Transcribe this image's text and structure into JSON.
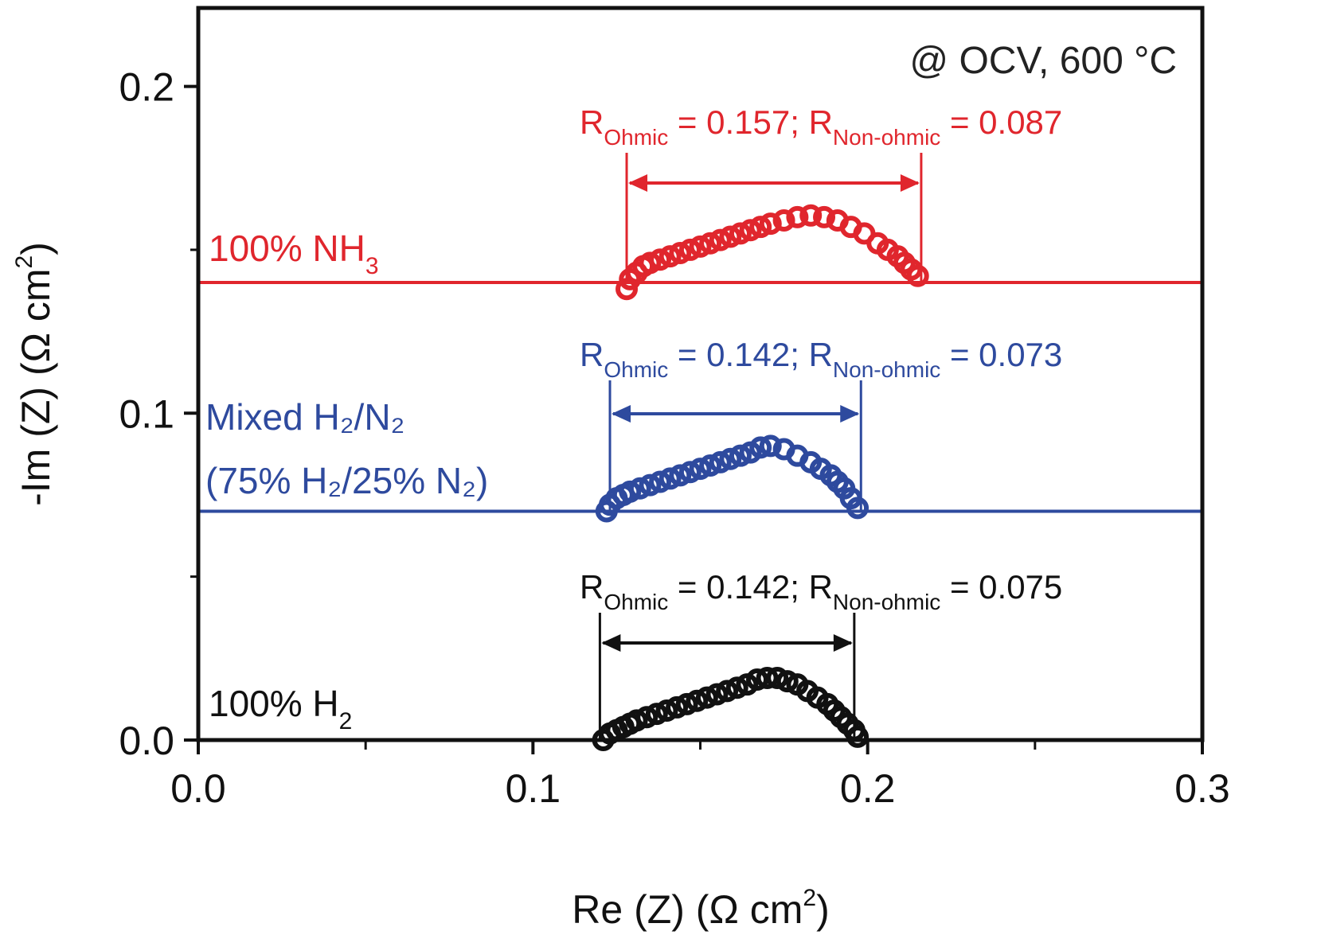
{
  "chart_data": {
    "type": "scatter",
    "title": "",
    "condition_label": "@ OCV, 600 °C",
    "xlabel": "Re (Z) (Ω cm²)",
    "ylabel": "-Im (Z) (Ω cm²)",
    "xlim": [
      0.0,
      0.3
    ],
    "ylim": [
      0.0,
      0.224
    ],
    "x_ticks": [
      0.0,
      0.1,
      0.2,
      0.3
    ],
    "x_tick_labels": [
      "0.0",
      "0.1",
      "0.2",
      "0.3"
    ],
    "x_minor_ticks": [
      0.05,
      0.15,
      0.25
    ],
    "y_ticks": [
      0.0,
      0.1,
      0.2
    ],
    "y_tick_labels": [
      "0.0",
      "0.1",
      "0.2"
    ],
    "y_minor_ticks": [
      0.05,
      0.15
    ],
    "grid": false,
    "series": [
      {
        "name": "100% NH3",
        "label_main": "100% NH",
        "label_sub": "3",
        "color": "#e0262d",
        "baseline_offset": 0.14,
        "r_ohmic": 0.157,
        "r_non_ohmic": 0.087,
        "annotation": {
          "r_ohmic_label": "R",
          "r_ohmic_sub": "Ohmic",
          "r_ohmic_text": " = 0.157; ",
          "r_non_sub": "Non-ohmic",
          "r_non_text": " = 0.087"
        },
        "arrow_range": [
          0.128,
          0.216
        ],
        "x": [
          0.128,
          0.129,
          0.131,
          0.133,
          0.135,
          0.138,
          0.141,
          0.144,
          0.147,
          0.15,
          0.153,
          0.156,
          0.159,
          0.162,
          0.165,
          0.168,
          0.171,
          0.175,
          0.179,
          0.183,
          0.187,
          0.191,
          0.195,
          0.199,
          0.203,
          0.206,
          0.209,
          0.211,
          0.213,
          0.215
        ],
        "y": [
          0.138,
          0.141,
          0.143,
          0.145,
          0.146,
          0.147,
          0.148,
          0.149,
          0.15,
          0.151,
          0.152,
          0.153,
          0.154,
          0.155,
          0.156,
          0.157,
          0.158,
          0.159,
          0.16,
          0.1605,
          0.16,
          0.159,
          0.157,
          0.155,
          0.152,
          0.15,
          0.148,
          0.146,
          0.144,
          0.142
        ]
      },
      {
        "name": "Mixed H2/N2 (75% H2/25% N2)",
        "label_line1": "Mixed H₂/N₂",
        "label_line2": "(75% H₂/25% N₂)",
        "color": "#2e4a9e",
        "baseline_offset": 0.07,
        "r_ohmic": 0.142,
        "r_non_ohmic": 0.073,
        "annotation": {
          "r_ohmic_label": "R",
          "r_ohmic_sub": "Ohmic",
          "r_ohmic_text": " = 0.142; ",
          "r_non_sub": "Non-ohmic",
          "r_non_text": " = 0.073"
        },
        "arrow_range": [
          0.123,
          0.198
        ],
        "x": [
          0.122,
          0.123,
          0.125,
          0.127,
          0.129,
          0.132,
          0.135,
          0.138,
          0.141,
          0.144,
          0.147,
          0.15,
          0.153,
          0.156,
          0.159,
          0.162,
          0.165,
          0.168,
          0.171,
          0.175,
          0.179,
          0.183,
          0.186,
          0.189,
          0.191,
          0.193,
          0.195,
          0.197
        ],
        "y": [
          0.07,
          0.072,
          0.074,
          0.075,
          0.076,
          0.077,
          0.078,
          0.079,
          0.08,
          0.081,
          0.082,
          0.083,
          0.084,
          0.085,
          0.086,
          0.087,
          0.088,
          0.0895,
          0.09,
          0.089,
          0.087,
          0.085,
          0.083,
          0.081,
          0.079,
          0.077,
          0.074,
          0.071
        ]
      },
      {
        "name": "100% H2",
        "label_main": "100% H",
        "label_sub": "2",
        "color": "#111111",
        "baseline_offset": 0.0,
        "r_ohmic": 0.142,
        "r_non_ohmic": 0.075,
        "annotation": {
          "r_ohmic_label": "R",
          "r_ohmic_sub": "Ohmic",
          "r_ohmic_text": " = 0.142; ",
          "r_non_sub": "Non-ohmic",
          "r_non_text": " = 0.075"
        },
        "arrow_range": [
          0.12,
          0.196
        ],
        "x": [
          0.121,
          0.123,
          0.125,
          0.127,
          0.129,
          0.131,
          0.134,
          0.137,
          0.14,
          0.143,
          0.146,
          0.149,
          0.152,
          0.155,
          0.158,
          0.161,
          0.164,
          0.167,
          0.17,
          0.173,
          0.176,
          0.179,
          0.182,
          0.185,
          0.188,
          0.19,
          0.192,
          0.194,
          0.196,
          0.197
        ],
        "y": [
          0.0,
          0.002,
          0.003,
          0.004,
          0.005,
          0.006,
          0.007,
          0.008,
          0.009,
          0.01,
          0.011,
          0.012,
          0.013,
          0.014,
          0.015,
          0.016,
          0.017,
          0.0185,
          0.019,
          0.019,
          0.018,
          0.017,
          0.015,
          0.013,
          0.011,
          0.009,
          0.007,
          0.005,
          0.003,
          0.001
        ]
      }
    ]
  }
}
